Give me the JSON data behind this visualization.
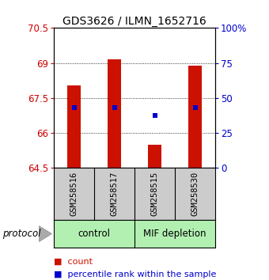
{
  "title": "GDS3626 / ILMN_1652716",
  "samples": [
    "GSM258516",
    "GSM258517",
    "GSM258515",
    "GSM258530"
  ],
  "bar_bottom": 64.5,
  "bar_tops": [
    68.05,
    69.15,
    65.5,
    68.9
  ],
  "blue_y": [
    67.1,
    67.1,
    66.75,
    67.1
  ],
  "ylim_left": [
    64.5,
    70.5
  ],
  "ylim_right": [
    0,
    100
  ],
  "yticks_left": [
    64.5,
    66.0,
    67.5,
    69.0,
    70.5
  ],
  "ytick_labels_left": [
    "64.5",
    "66",
    "67.5",
    "69",
    "70.5"
  ],
  "yticks_right": [
    0,
    25,
    50,
    75,
    100
  ],
  "ytick_labels_right": [
    "0",
    "25",
    "50",
    "75",
    "100%"
  ],
  "bar_color": "#cc1100",
  "blue_color": "#0000cc",
  "group_labels": [
    "control",
    "MIF depletion"
  ],
  "group_color_light": "#b2f0b2",
  "group_color_dark": "#44dd44",
  "protocol_label": "protocol",
  "legend_count": "count",
  "legend_percentile": "percentile rank within the sample",
  "bar_width": 0.35,
  "blue_marker_size": 25,
  "tick_label_color_left": "#cc0000",
  "tick_label_color_right": "#0000cc",
  "title_fontsize": 10
}
